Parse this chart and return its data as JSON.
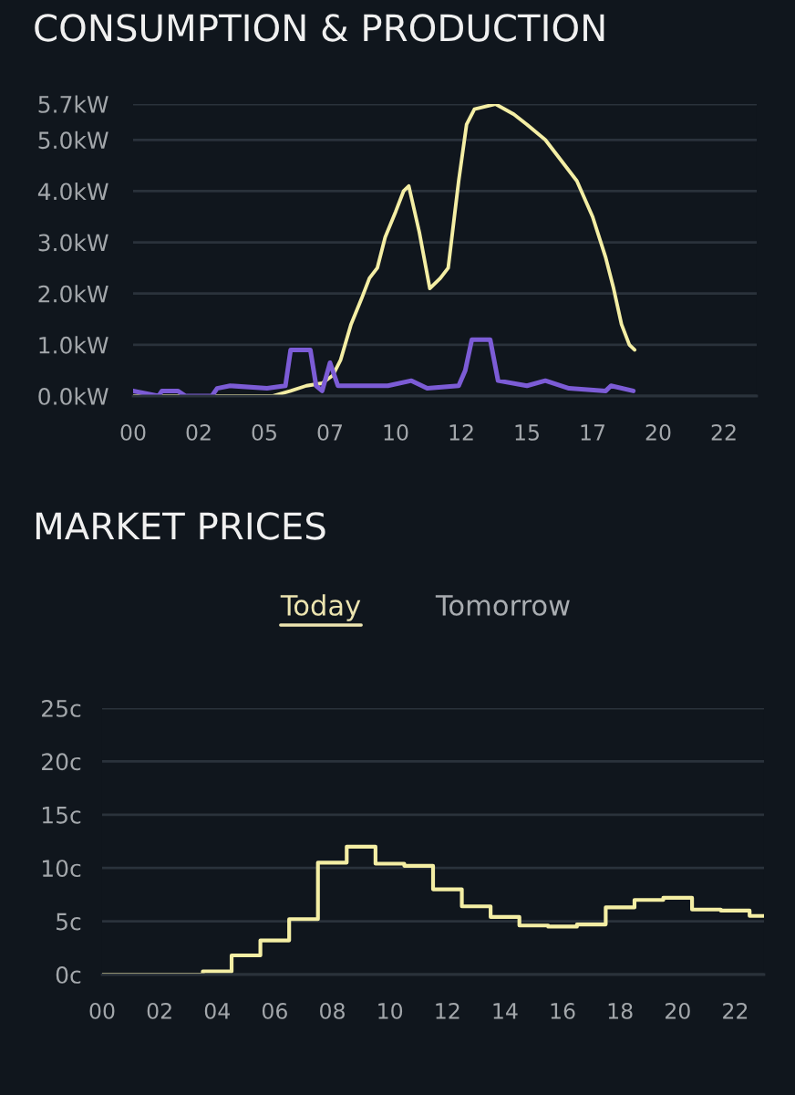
{
  "chart_data": [
    {
      "type": "line",
      "title": "CONSUMPTION & PRODUCTION",
      "series": [
        {
          "color": "#f4eea4",
          "x": [
            0,
            1.0,
            5.3,
            6.0,
            6.6,
            7.2,
            7.6,
            7.9,
            8.3,
            8.7,
            9.0,
            9.3,
            9.6,
            10.0,
            10.3,
            10.5,
            10.9,
            11.3,
            11.7,
            12.0,
            12.4,
            12.7,
            13.0,
            13.8,
            14.5,
            15.0,
            15.7,
            16.3,
            16.9,
            17.5,
            18.0,
            18.3,
            18.6,
            18.9,
            19.1
          ],
          "values": [
            0,
            0,
            0,
            0.1,
            0.2,
            0.25,
            0.4,
            0.7,
            1.4,
            1.9,
            2.3,
            2.5,
            3.1,
            3.6,
            4.0,
            4.1,
            3.2,
            2.1,
            2.3,
            2.5,
            4.2,
            5.3,
            5.6,
            5.7,
            5.5,
            5.3,
            5.0,
            4.6,
            4.2,
            3.5,
            2.7,
            2.1,
            1.4,
            1.0,
            0.9
          ]
        },
        {
          "color": "#7c5cd6",
          "x": [
            0,
            0.97,
            1.1,
            1.7,
            2.0,
            3.0,
            3.2,
            3.7,
            5.1,
            5.8,
            6.0,
            6.75,
            6.97,
            7.2,
            7.5,
            7.8,
            8.2,
            9.7,
            10.6,
            11.2,
            12.4,
            12.65,
            12.9,
            13.6,
            13.9,
            15.0,
            15.7,
            16.6,
            18.0,
            18.2,
            19.05
          ],
          "values": [
            0.1,
            0.0,
            0.1,
            0.1,
            0.0,
            0.0,
            0.15,
            0.2,
            0.15,
            0.2,
            0.9,
            0.9,
            0.2,
            0.1,
            0.65,
            0.2,
            0.2,
            0.2,
            0.3,
            0.15,
            0.2,
            0.5,
            1.1,
            1.1,
            0.3,
            0.2,
            0.3,
            0.15,
            0.1,
            0.2,
            0.1
          ]
        }
      ],
      "xlim": [
        0,
        23.75
      ],
      "xticks": [
        {
          "value": 0,
          "label": "00"
        },
        {
          "value": 2.5,
          "label": "02"
        },
        {
          "value": 5,
          "label": "05"
        },
        {
          "value": 7.5,
          "label": "07"
        },
        {
          "value": 10,
          "label": "10"
        },
        {
          "value": 12.5,
          "label": "12"
        },
        {
          "value": 15,
          "label": "15"
        },
        {
          "value": 17.5,
          "label": "17"
        },
        {
          "value": 20,
          "label": "20"
        },
        {
          "value": 22.5,
          "label": "22"
        }
      ],
      "ylim": [
        0,
        5.7
      ],
      "yticks": [
        {
          "value": 0,
          "label": "0.0kW"
        },
        {
          "value": 1,
          "label": "1.0kW"
        },
        {
          "value": 2,
          "label": "2.0kW"
        },
        {
          "value": 3,
          "label": "3.0kW"
        },
        {
          "value": 4,
          "label": "4.0kW"
        },
        {
          "value": 5,
          "label": "5.0kW"
        },
        {
          "value": 5.7,
          "label": "5.7kW"
        }
      ],
      "grid": "y"
    },
    {
      "type": "step",
      "title": "MARKET PRICES",
      "annotations": [
        "Today",
        "Tomorrow"
      ],
      "x": [
        0,
        1,
        2,
        3,
        4,
        5,
        6,
        7,
        8,
        9,
        10,
        11,
        12,
        13,
        14,
        15,
        16,
        17,
        18,
        19,
        20,
        21,
        22,
        23
      ],
      "series": [
        {
          "color": "#f4eea4",
          "values": [
            0.0,
            0.0,
            0.0,
            0.0,
            0.3,
            1.8,
            3.2,
            5.2,
            10.5,
            12.0,
            10.4,
            10.2,
            8.0,
            6.4,
            5.4,
            4.6,
            4.5,
            4.7,
            6.3,
            7.0,
            7.2,
            6.1,
            6.0,
            5.5
          ]
        }
      ],
      "xlim": [
        0,
        23
      ],
      "xticks": [
        {
          "value": 0,
          "label": "00"
        },
        {
          "value": 2,
          "label": "02"
        },
        {
          "value": 4,
          "label": "04"
        },
        {
          "value": 6,
          "label": "06"
        },
        {
          "value": 8,
          "label": "08"
        },
        {
          "value": 10,
          "label": "10"
        },
        {
          "value": 12,
          "label": "12"
        },
        {
          "value": 14,
          "label": "14"
        },
        {
          "value": 16,
          "label": "16"
        },
        {
          "value": 18,
          "label": "18"
        },
        {
          "value": 20,
          "label": "20"
        },
        {
          "value": 22,
          "label": "22"
        }
      ],
      "ylim": [
        0,
        25
      ],
      "yticks": [
        {
          "value": 0,
          "label": "0c"
        },
        {
          "value": 5,
          "label": "5c"
        },
        {
          "value": 10,
          "label": "10c"
        },
        {
          "value": 15,
          "label": "15c"
        },
        {
          "value": 20,
          "label": "20c"
        },
        {
          "value": 25,
          "label": "25c"
        }
      ],
      "grid": "y"
    }
  ]
}
